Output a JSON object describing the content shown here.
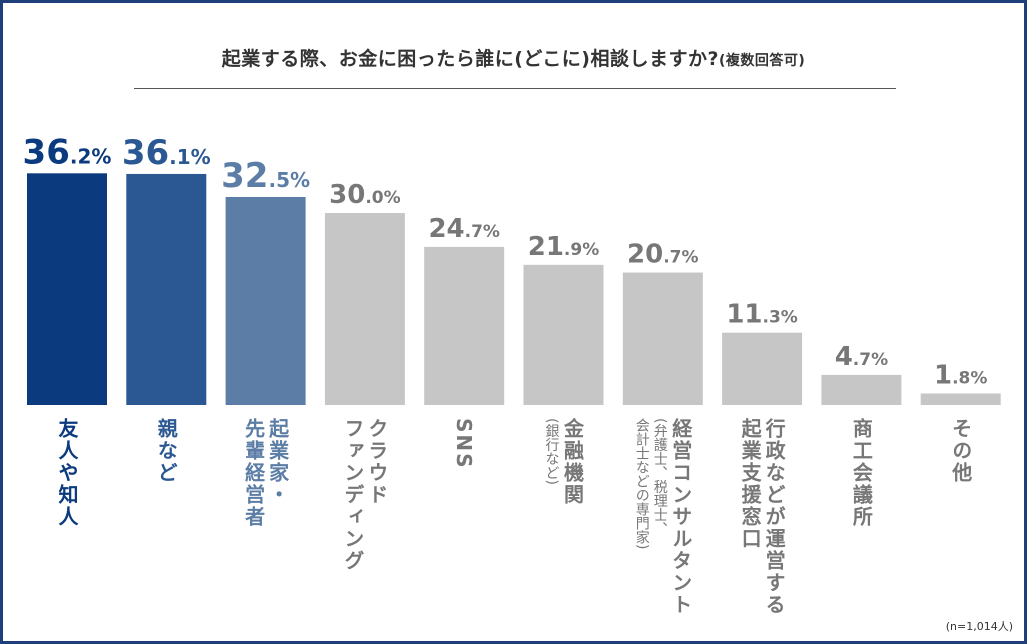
{
  "chart_data": {
    "type": "bar",
    "title": "起業する際、お金に困ったら誰に(どこに)相談しますか?",
    "title_note": "(複数回答可)",
    "categories": [
      {
        "main": "友人や知人",
        "sub": ""
      },
      {
        "main": "親など",
        "sub": ""
      },
      {
        "main": "起業家・\n先輩経営者",
        "sub": ""
      },
      {
        "main": "クラウド\nファンディング",
        "sub": ""
      },
      {
        "main": "SNS",
        "sub": ""
      },
      {
        "main": "金融機関",
        "sub": "(銀行など)"
      },
      {
        "main": "経営コンサルタント",
        "sub": "(弁護士、税理士、\n会計士などの専門家)"
      },
      {
        "main": "行政などが運営する\n起業支援窓口",
        "sub": ""
      },
      {
        "main": "商工会議所",
        "sub": ""
      },
      {
        "main": "その他",
        "sub": ""
      }
    ],
    "values": [
      36.2,
      36.1,
      32.5,
      30.0,
      24.7,
      21.9,
      20.7,
      11.3,
      4.7,
      1.8
    ],
    "unit": "%",
    "colors": [
      "#0b3a7e",
      "#2b5892",
      "#5c7ea6",
      "#c6c6c6",
      "#c6c6c6",
      "#c6c6c6",
      "#c6c6c6",
      "#c6c6c6",
      "#c6c6c6",
      "#c6c6c6"
    ],
    "label_colors": [
      "#0b3a7e",
      "#2b5892",
      "#5c7ea6",
      "#777777",
      "#777777",
      "#777777",
      "#777777",
      "#777777",
      "#777777",
      "#777777"
    ],
    "cat_colors": [
      "#0b3a7e",
      "#2b5892",
      "#5c7ea6",
      "#777777",
      "#777777",
      "#777777",
      "#777777",
      "#777777",
      "#777777",
      "#777777"
    ],
    "note": "(n=1,014人)"
  }
}
